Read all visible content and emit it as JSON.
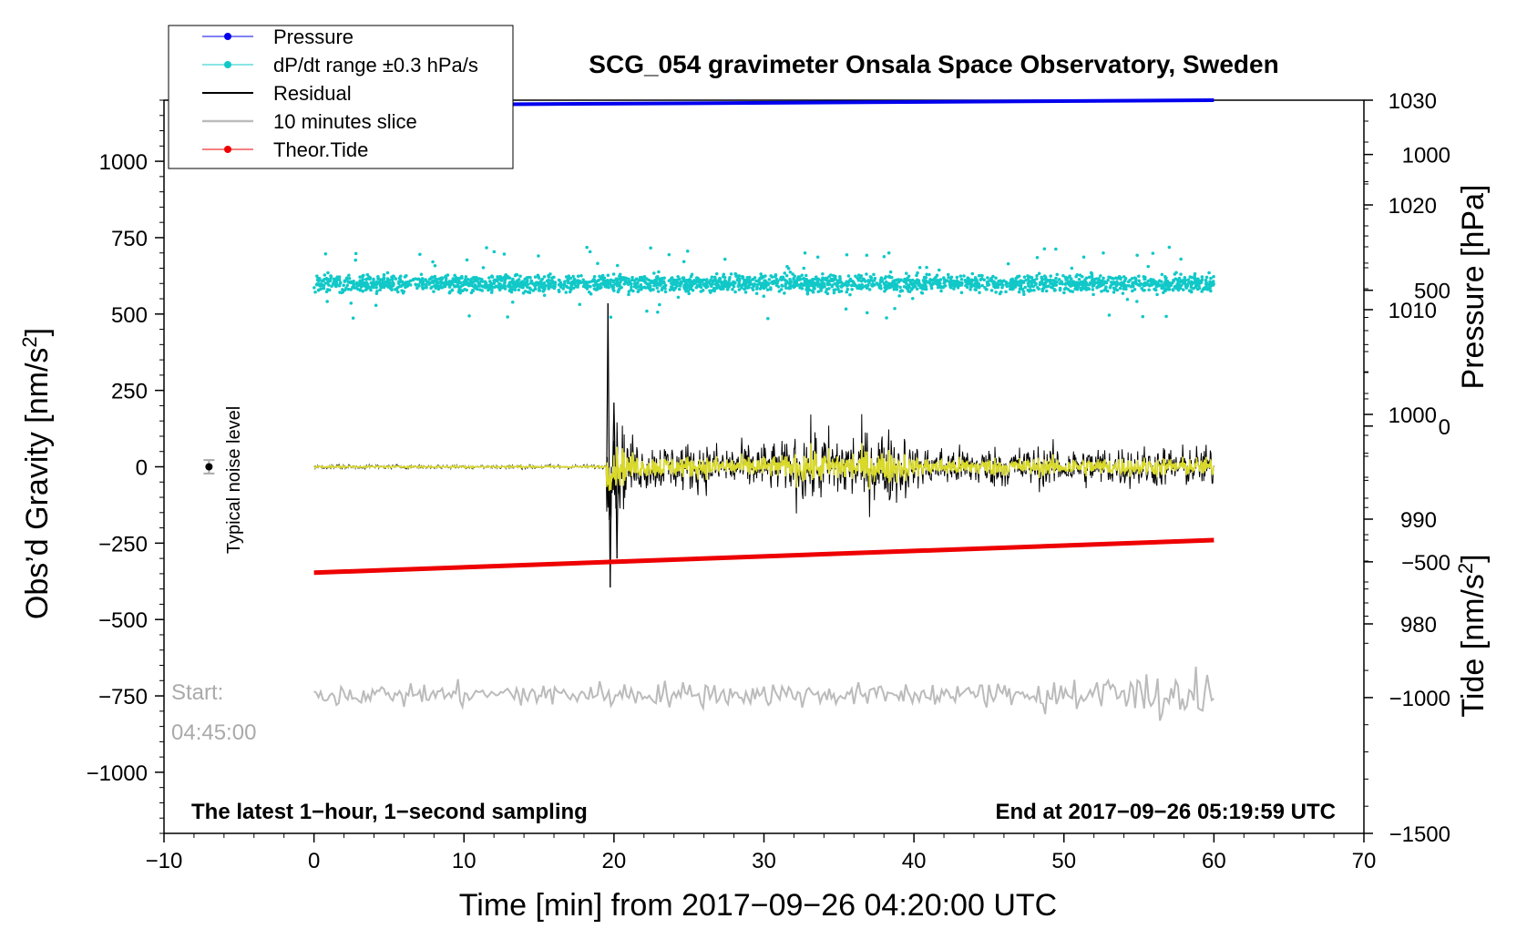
{
  "colors": {
    "pressure": "#0000ee",
    "dpdt": "#11c8c8",
    "residual": "#000000",
    "slice": "#bbbbbb",
    "tide": "#ee0000",
    "yellow": "#d9d92a",
    "frame": "#000000",
    "background": "#ffffff"
  },
  "chart_data": {
    "type": "line",
    "title": "SCG_054 gravimeter Onsala Space Observatory, Sweden",
    "xlabel": "Time [min] from 2017−09−26 04:20:00 UTC",
    "ylabel_left_prefix": "Obs’d Gravity [nm/s",
    "ylabel_left_sup": "2",
    "ylabel_left_suffix": "]",
    "ylabel_right_top": "Pressure [hPa]",
    "ylabel_right_bottom_prefix": "Tide [nm/s",
    "ylabel_right_bottom_sup": "2",
    "ylabel_right_bottom_suffix": "]",
    "xlim": [
      -10,
      70
    ],
    "ylim_left": [
      -1200,
      1200
    ],
    "x_ticks": [
      -10,
      0,
      10,
      20,
      30,
      40,
      50,
      60,
      70
    ],
    "x_tick_labels": [
      "−10",
      "0",
      "10",
      "20",
      "30",
      "40",
      "50",
      "60",
      "70"
    ],
    "y_ticks_left": [
      1000,
      750,
      500,
      250,
      0,
      -250,
      -500,
      -750,
      -1000
    ],
    "y_tick_labels_left": [
      "1000",
      "750",
      "500",
      "250",
      "0",
      "−250",
      "−500",
      "−750",
      "−1000"
    ],
    "pressure_axis": {
      "range_hpa": [
        960,
        1030
      ],
      "ticks": [
        1030,
        1020,
        1010,
        1000,
        990,
        980
      ],
      "tick_labels": [
        "1030",
        "1020",
        "1010",
        "1000",
        "990",
        "980"
      ]
    },
    "tide_axis": {
      "range_nm_s2": [
        -1500,
        1200
      ],
      "ticks": [
        1000,
        500,
        0,
        -500,
        -1000,
        -1500
      ],
      "tick_labels": [
        "1000",
        "500",
        "0",
        "−500",
        "−1000",
        "−1500"
      ]
    },
    "legend": {
      "placement": "top-left",
      "entries": [
        {
          "label": "Pressure",
          "color_key": "pressure",
          "marker": true
        },
        {
          "label": "dP/dt range ±0.3 hPa/s",
          "color_key": "dpdt",
          "marker": true
        },
        {
          "label": "Residual",
          "color_key": "residual",
          "marker": false
        },
        {
          "label": "10 minutes slice",
          "color_key": "slice",
          "marker": false
        },
        {
          "label": "Theor.Tide",
          "color_key": "tide",
          "marker": true
        }
      ]
    },
    "series": [
      {
        "name": "Pressure",
        "axis": "pressure",
        "x": [
          0,
          60
        ],
        "values": [
          1029.5,
          1030.0
        ]
      },
      {
        "name": "dP/dt range ±0.3 hPa/s",
        "axis": "left",
        "x_range": [
          0,
          60
        ],
        "center": 600,
        "spread": 25
      },
      {
        "name": "Residual",
        "axis": "left",
        "x_range": [
          0,
          60
        ],
        "quiet_until": 19.5,
        "spikes": [
          {
            "x": 19.6,
            "y": 535
          },
          {
            "x": 19.75,
            "y": -395
          },
          {
            "x": 20.0,
            "y": 210
          },
          {
            "x": 20.2,
            "y": -300
          }
        ]
      },
      {
        "name": "10 minutes slice",
        "axis": "left",
        "x_range": [
          0,
          60
        ],
        "center": -745
      },
      {
        "name": "Theor.Tide",
        "axis": "tide",
        "x": [
          0,
          60
        ],
        "values": [
          -540,
          -420
        ]
      }
    ],
    "noise_marker": {
      "x": -7,
      "y": 0,
      "error": 22,
      "label": "Typical noise level"
    },
    "annotations": {
      "start_label": "Start:",
      "start_time": "04:45:00",
      "bottom_left": "The latest 1−hour, 1−second sampling",
      "bottom_right": "End at 2017−09−26 05:19:59 UTC"
    }
  }
}
